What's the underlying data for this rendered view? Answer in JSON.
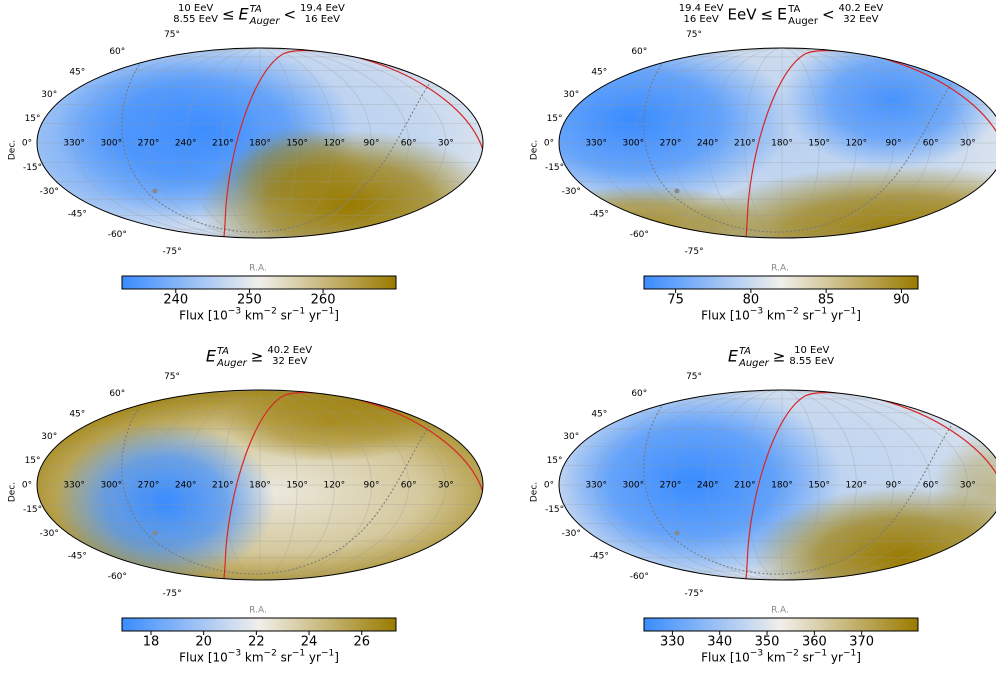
{
  "chart_data": [
    {
      "type": "skymap",
      "title": [
        {
          "top": "10 EeV",
          "bottom": "8.55 EeV"
        },
        {
          "text": "≤"
        },
        {
          "base": "E",
          "sup": "TA",
          "sub": "Auger",
          "italic": true
        },
        {
          "text": "<"
        },
        {
          "top": "19.4 EeV",
          "bottom": "16 EeV"
        }
      ],
      "xlabel": "R.A.",
      "ylabel": "Dec.",
      "xlim": [
        360,
        0
      ],
      "ylim": [
        -90,
        90
      ],
      "xticks": [
        {
          "value": 330,
          "label": "330°"
        },
        {
          "value": 300,
          "label": "300°"
        },
        {
          "value": 270,
          "label": "270°"
        },
        {
          "value": 240,
          "label": "240°"
        },
        {
          "value": 210,
          "label": "210°"
        },
        {
          "value": 180,
          "label": "180°"
        },
        {
          "value": 150,
          "label": "150°"
        },
        {
          "value": 120,
          "label": "120°"
        },
        {
          "value": 90,
          "label": "90°"
        },
        {
          "value": 60,
          "label": "60°"
        },
        {
          "value": 30,
          "label": "30°"
        }
      ],
      "yticks": [
        {
          "value": 75,
          "label": "75°"
        },
        {
          "value": 60,
          "label": "60°"
        },
        {
          "value": 45,
          "label": "45°"
        },
        {
          "value": 30,
          "label": "30°"
        },
        {
          "value": 15,
          "label": "15°"
        },
        {
          "value": 0,
          "label": "0°"
        },
        {
          "value": -15,
          "label": "-15°"
        },
        {
          "value": -30,
          "label": "-30°"
        },
        {
          "value": -45,
          "label": "-45°"
        },
        {
          "value": -60,
          "label": "-60°"
        },
        {
          "value": -75,
          "label": "-75°"
        }
      ],
      "grid": true,
      "colors": {
        "low": "#3a8cff",
        "mid": "#f1efeb",
        "high": "#9a7b00"
      },
      "colorbar": {
        "clim": [
          232.7,
          269.9
        ],
        "ticks": [
          240,
          250,
          260
        ],
        "label": [
          {
            "text": "Flux [10"
          },
          {
            "sup": "−3"
          },
          {
            "text": " km"
          },
          {
            "sup": "−2"
          },
          {
            "text": " sr"
          },
          {
            "sup": "−1"
          },
          {
            "text": " yr"
          },
          {
            "sup": "−1"
          },
          {
            "text": "]"
          }
        ]
      }
    },
    {
      "type": "skymap",
      "title": [
        {
          "top": "19.4 EeV",
          "bottom": "16 EeV"
        },
        {
          "text": "EeV"
        },
        {
          "text": "≤"
        },
        {
          "base": "E",
          "sup": "TA",
          "sub": "Auger",
          "italic": false
        },
        {
          "text": "<"
        },
        {
          "top": "40.2 EeV",
          "bottom": "32 EeV"
        }
      ],
      "xlabel": "R.A.",
      "ylabel": "Dec.",
      "xlim": [
        360,
        0
      ],
      "ylim": [
        -90,
        90
      ],
      "xticks": [
        {
          "value": 330,
          "label": "330°"
        },
        {
          "value": 300,
          "label": "300°"
        },
        {
          "value": 270,
          "label": "270°"
        },
        {
          "value": 240,
          "label": "240°"
        },
        {
          "value": 210,
          "label": "210°"
        },
        {
          "value": 180,
          "label": "180°"
        },
        {
          "value": 150,
          "label": "150°"
        },
        {
          "value": 120,
          "label": "120°"
        },
        {
          "value": 90,
          "label": "90°"
        },
        {
          "value": 60,
          "label": "60°"
        },
        {
          "value": 30,
          "label": "30°"
        }
      ],
      "yticks": [
        {
          "value": 75,
          "label": "75°"
        },
        {
          "value": 60,
          "label": "60°"
        },
        {
          "value": 45,
          "label": "45°"
        },
        {
          "value": 30,
          "label": "30°"
        },
        {
          "value": 15,
          "label": "15°"
        },
        {
          "value": 0,
          "label": "0°"
        },
        {
          "value": -15,
          "label": "-15°"
        },
        {
          "value": -30,
          "label": "-30°"
        },
        {
          "value": -45,
          "label": "-45°"
        },
        {
          "value": -60,
          "label": "-60°"
        },
        {
          "value": -75,
          "label": "-75°"
        }
      ],
      "grid": true,
      "colors": {
        "low": "#3a8cff",
        "mid": "#f1efeb",
        "high": "#9a7b00"
      },
      "colorbar": {
        "clim": [
          72.9,
          91.1
        ],
        "ticks": [
          75,
          80,
          85,
          90
        ],
        "label": [
          {
            "text": "Flux [10"
          },
          {
            "sup": "−3"
          },
          {
            "text": " km"
          },
          {
            "sup": "−2"
          },
          {
            "text": " sr"
          },
          {
            "sup": "−1"
          },
          {
            "text": " yr"
          },
          {
            "sup": "−1"
          },
          {
            "text": "]"
          }
        ]
      }
    },
    {
      "type": "skymap",
      "title": [
        {
          "base": "E",
          "sup": "TA",
          "sub": "Auger",
          "italic": true
        },
        {
          "text": "≥"
        },
        {
          "top": "40.2 EeV",
          "bottom": "32 EeV"
        }
      ],
      "xlabel": "R.A.",
      "ylabel": "Dec.",
      "xlim": [
        360,
        0
      ],
      "ylim": [
        -90,
        90
      ],
      "xticks": [
        {
          "value": 330,
          "label": "330°"
        },
        {
          "value": 300,
          "label": "300°"
        },
        {
          "value": 270,
          "label": "270°"
        },
        {
          "value": 240,
          "label": "240°"
        },
        {
          "value": 210,
          "label": "210°"
        },
        {
          "value": 180,
          "label": "180°"
        },
        {
          "value": 150,
          "label": "150°"
        },
        {
          "value": 120,
          "label": "120°"
        },
        {
          "value": 90,
          "label": "90°"
        },
        {
          "value": 60,
          "label": "60°"
        },
        {
          "value": 30,
          "label": "30°"
        }
      ],
      "yticks": [
        {
          "value": 75,
          "label": "75°"
        },
        {
          "value": 60,
          "label": "60°"
        },
        {
          "value": 45,
          "label": "45°"
        },
        {
          "value": 30,
          "label": "30°"
        },
        {
          "value": 15,
          "label": "15°"
        },
        {
          "value": 0,
          "label": "0°"
        },
        {
          "value": -15,
          "label": "-15°"
        },
        {
          "value": -30,
          "label": "-30°"
        },
        {
          "value": -45,
          "label": "-45°"
        },
        {
          "value": -60,
          "label": "-60°"
        },
        {
          "value": -75,
          "label": "-75°"
        }
      ],
      "grid": true,
      "colors": {
        "low": "#3a8cff",
        "mid": "#f1efeb",
        "high": "#9a7b00"
      },
      "colorbar": {
        "clim": [
          16.9,
          27.3
        ],
        "ticks": [
          18,
          20,
          22,
          24,
          26
        ],
        "label": [
          {
            "text": "Flux [10"
          },
          {
            "sup": "−3"
          },
          {
            "text": " km"
          },
          {
            "sup": "−2"
          },
          {
            "text": " sr"
          },
          {
            "sup": "−1"
          },
          {
            "text": " yr"
          },
          {
            "sup": "−1"
          },
          {
            "text": "]"
          }
        ]
      }
    },
    {
      "type": "skymap",
      "title": [
        {
          "base": "E",
          "sup": "TA",
          "sub": "Auger",
          "italic": true
        },
        {
          "text": "≥"
        },
        {
          "top": "10 EeV",
          "bottom": "8.55 EeV"
        }
      ],
      "xlabel": "R.A.",
      "ylabel": "Dec.",
      "xlim": [
        360,
        0
      ],
      "ylim": [
        -90,
        90
      ],
      "xticks": [
        {
          "value": 330,
          "label": "330°"
        },
        {
          "value": 300,
          "label": "300°"
        },
        {
          "value": 270,
          "label": "270°"
        },
        {
          "value": 240,
          "label": "240°"
        },
        {
          "value": 210,
          "label": "210°"
        },
        {
          "value": 180,
          "label": "180°"
        },
        {
          "value": 150,
          "label": "150°"
        },
        {
          "value": 120,
          "label": "120°"
        },
        {
          "value": 90,
          "label": "90°"
        },
        {
          "value": 60,
          "label": "60°"
        },
        {
          "value": 30,
          "label": "30°"
        }
      ],
      "yticks": [
        {
          "value": 75,
          "label": "75°"
        },
        {
          "value": 60,
          "label": "60°"
        },
        {
          "value": 45,
          "label": "45°"
        },
        {
          "value": 30,
          "label": "30°"
        },
        {
          "value": 15,
          "label": "15°"
        },
        {
          "value": 0,
          "label": "0°"
        },
        {
          "value": -15,
          "label": "-15°"
        },
        {
          "value": -30,
          "label": "-30°"
        },
        {
          "value": -45,
          "label": "-45°"
        },
        {
          "value": -60,
          "label": "-60°"
        },
        {
          "value": -75,
          "label": "-75°"
        }
      ],
      "grid": true,
      "colors": {
        "low": "#3a8cff",
        "mid": "#f1efeb",
        "high": "#9a7b00"
      },
      "colorbar": {
        "clim": [
          324.0,
          381.9
        ],
        "ticks": [
          330,
          340,
          350,
          360,
          370
        ],
        "label": [
          {
            "text": "Flux [10"
          },
          {
            "sup": "−3"
          },
          {
            "text": " km"
          },
          {
            "sup": "−2"
          },
          {
            "text": " sr"
          },
          {
            "sup": "−1"
          },
          {
            "text": " yr"
          },
          {
            "sup": "−1"
          },
          {
            "text": "]"
          }
        ]
      }
    }
  ]
}
